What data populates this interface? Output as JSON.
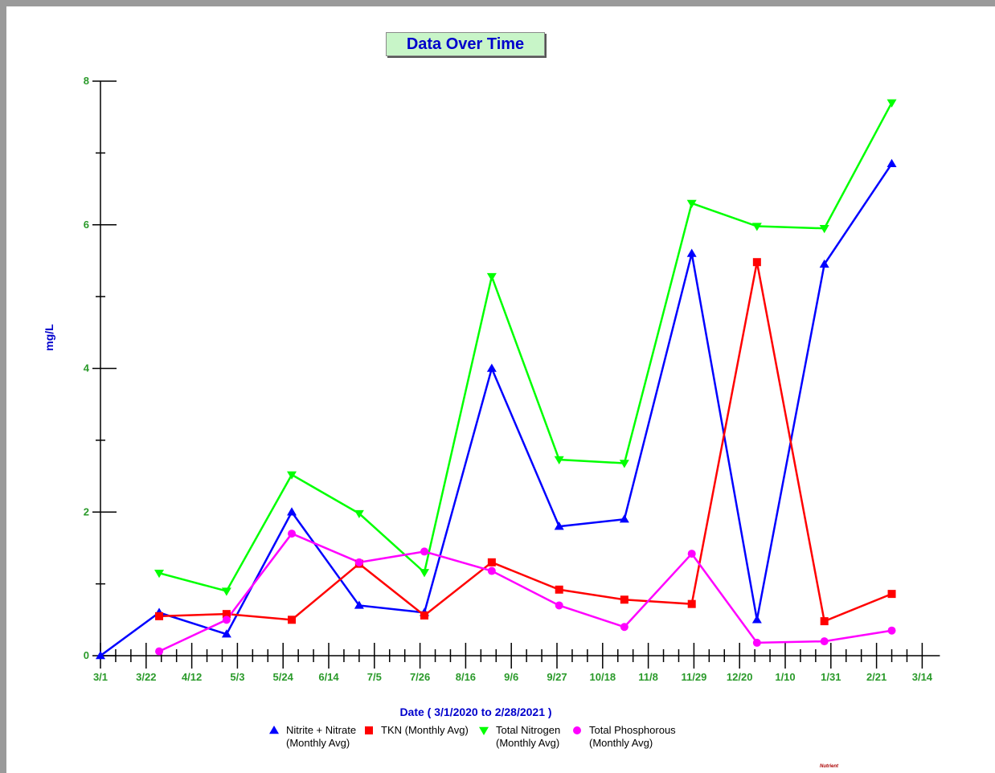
{
  "chart_data": {
    "type": "line",
    "title": "Data Over Time",
    "xlabel": "Date  ( 3/1/2020  to  2/28/2021 )",
    "ylabel": "mg/L",
    "ylim": [
      0,
      8
    ],
    "y_ticks": [
      "0",
      "2",
      "4",
      "6",
      "8"
    ],
    "x_ticks": [
      "3/1",
      "3/22",
      "4/12",
      "5/3",
      "5/24",
      "6/14",
      "7/5",
      "7/26",
      "8/16",
      "9/6",
      "9/27",
      "10/18",
      "11/8",
      "11/29",
      "12/20",
      "1/10",
      "1/31",
      "2/21",
      "3/14"
    ],
    "x_dates": [
      "2020-03-28",
      "2020-04-28",
      "2020-05-28",
      "2020-06-28",
      "2020-07-28",
      "2020-08-28",
      "2020-09-28",
      "2020-10-28",
      "2020-11-28",
      "2020-12-28",
      "2021-01-28",
      "2021-02-28"
    ],
    "series": [
      {
        "name": "Nitrite + Nitrate (Monthly Avg)",
        "color": "#0000ff",
        "marker": "triangle-up",
        "points": [
          [
            "2020-03-01",
            0.0
          ],
          [
            "2020-03-28",
            0.6
          ],
          [
            "2020-04-28",
            0.3
          ],
          [
            "2020-05-28",
            2.0
          ],
          [
            "2020-06-28",
            0.7
          ],
          [
            "2020-07-28",
            0.6
          ],
          [
            "2020-08-28",
            4.0
          ],
          [
            "2020-09-28",
            1.8
          ],
          [
            "2020-10-28",
            1.9
          ],
          [
            "2020-11-28",
            5.6
          ],
          [
            "2020-12-28",
            0.5
          ],
          [
            "2021-01-28",
            5.45
          ],
          [
            "2021-02-28",
            6.85
          ]
        ]
      },
      {
        "name": "TKN (Monthly Avg)",
        "color": "#ff0000",
        "marker": "square",
        "points": [
          [
            "2020-03-28",
            0.55
          ],
          [
            "2020-04-28",
            0.58
          ],
          [
            "2020-05-28",
            0.5
          ],
          [
            "2020-06-28",
            1.28
          ],
          [
            "2020-07-28",
            0.56
          ],
          [
            "2020-08-28",
            1.3
          ],
          [
            "2020-09-28",
            0.92
          ],
          [
            "2020-10-28",
            0.78
          ],
          [
            "2020-11-28",
            0.72
          ],
          [
            "2020-12-28",
            5.48
          ],
          [
            "2021-01-28",
            0.48
          ],
          [
            "2021-02-28",
            0.86
          ]
        ]
      },
      {
        "name": "Total Nitrogen (Monthly Avg)",
        "color": "#00ff00",
        "marker": "triangle-down",
        "points": [
          [
            "2020-03-28",
            1.15
          ],
          [
            "2020-04-28",
            0.9
          ],
          [
            "2020-05-28",
            2.52
          ],
          [
            "2020-06-28",
            1.98
          ],
          [
            "2020-07-28",
            1.16
          ],
          [
            "2020-08-28",
            5.28
          ],
          [
            "2020-09-28",
            2.73
          ],
          [
            "2020-10-28",
            2.68
          ],
          [
            "2020-11-28",
            6.3
          ],
          [
            "2020-12-28",
            5.98
          ],
          [
            "2021-01-28",
            5.95
          ],
          [
            "2021-02-28",
            7.7
          ]
        ]
      },
      {
        "name": "Total Phosphorous (Monthly Avg)",
        "color": "#ff00ff",
        "marker": "circle",
        "points": [
          [
            "2020-03-28",
            0.06
          ],
          [
            "2020-04-28",
            0.5
          ],
          [
            "2020-05-28",
            1.7
          ],
          [
            "2020-06-28",
            1.3
          ],
          [
            "2020-07-28",
            1.45
          ],
          [
            "2020-08-28",
            1.18
          ],
          [
            "2020-09-28",
            0.7
          ],
          [
            "2020-10-28",
            0.4
          ],
          [
            "2020-11-28",
            1.42
          ],
          [
            "2020-12-28",
            0.18
          ],
          [
            "2021-01-28",
            0.2
          ],
          [
            "2021-02-28",
            0.35
          ]
        ]
      }
    ],
    "legend": [
      {
        "line1": "Nitrite + Nitrate",
        "line2": "(Monthly Avg)",
        "color": "#0000ff",
        "marker": "triangle-up"
      },
      {
        "line1": "TKN (Monthly Avg)",
        "line2": "",
        "color": "#ff0000",
        "marker": "square"
      },
      {
        "line1": "Total Nitrogen",
        "line2": "(Monthly Avg)",
        "color": "#00ff00",
        "marker": "triangle-down"
      },
      {
        "line1": "Total Phosphorous",
        "line2": "(Monthly Avg)",
        "color": "#ff00ff",
        "marker": "circle"
      }
    ],
    "legend_placement": "bottom-center",
    "grid": false,
    "footnote": "Nutrient"
  }
}
